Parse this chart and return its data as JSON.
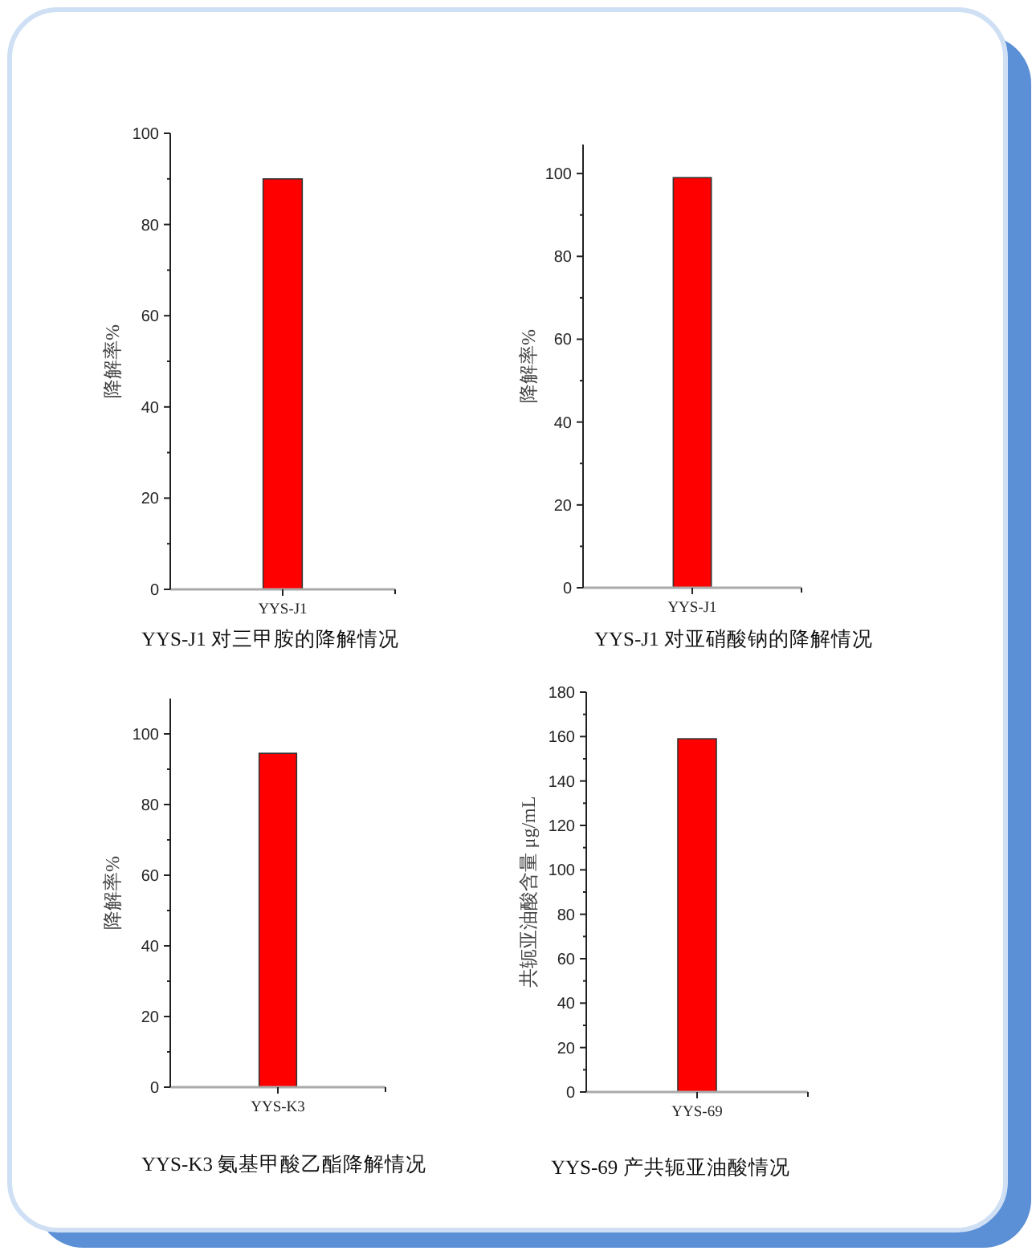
{
  "chart_data": [
    {
      "type": "bar",
      "title": "YYS-J1 对三甲胺的降解情况",
      "ylabel": "降解率%",
      "categories": [
        "YYS-J1"
      ],
      "values": [
        90
      ],
      "color": "#ff0000",
      "ylim": [
        0,
        100
      ],
      "yticks": [
        0,
        {
          "value": 10,
          "label": null
        },
        20,
        {
          "value": 30,
          "label": null
        },
        40,
        {
          "value": 50,
          "label": null
        },
        60,
        {
          "value": 70,
          "label": null
        },
        80,
        {
          "value": 90,
          "label": null
        },
        100
      ]
    },
    {
      "type": "bar",
      "title": "YYS-J1 对亚硝酸钠的降解情况",
      "ylabel": "降解率%",
      "categories": [
        "YYS-J1"
      ],
      "values": [
        99
      ],
      "color": "#ff0000",
      "ylim": [
        0,
        107
      ],
      "yticks": [
        0,
        {
          "value": 10,
          "label": null
        },
        20,
        {
          "value": 30,
          "label": null
        },
        40,
        {
          "value": 50,
          "label": null
        },
        60,
        {
          "value": 70,
          "label": null
        },
        80,
        {
          "value": 90,
          "label": null
        },
        100
      ]
    },
    {
      "type": "bar",
      "title": "YYS-K3 氨基甲酸乙酯降解情况",
      "ylabel": "降解率%",
      "categories": [
        "YYS-K3"
      ],
      "values": [
        94.5
      ],
      "color": "#ff0000",
      "ylim": [
        0,
        110
      ],
      "yticks": [
        0,
        {
          "value": 10,
          "label": null
        },
        20,
        {
          "value": 30,
          "label": null
        },
        40,
        {
          "value": 50,
          "label": null
        },
        60,
        {
          "value": 70,
          "label": null
        },
        80,
        {
          "value": 90,
          "label": null
        },
        100
      ]
    },
    {
      "type": "bar",
      "title": "YYS-69 产共轭亚油酸情况",
      "ylabel": "共轭亚油酸含量 μg/mL",
      "categories": [
        "YYS-69"
      ],
      "values": [
        159
      ],
      "color": "#ff0000",
      "ylim": [
        0,
        180
      ],
      "yticks": [
        0,
        {
          "value": 10,
          "label": null
        },
        20,
        {
          "value": 30,
          "label": null
        },
        40,
        {
          "value": 50,
          "label": null
        },
        60,
        {
          "value": 70,
          "label": null
        },
        80,
        {
          "value": 90,
          "label": null
        },
        100,
        {
          "value": 110,
          "label": null
        },
        120,
        {
          "value": 130,
          "label": null
        },
        140,
        {
          "value": 150,
          "label": null
        },
        160,
        {
          "value": 170,
          "label": null
        },
        180
      ]
    }
  ]
}
